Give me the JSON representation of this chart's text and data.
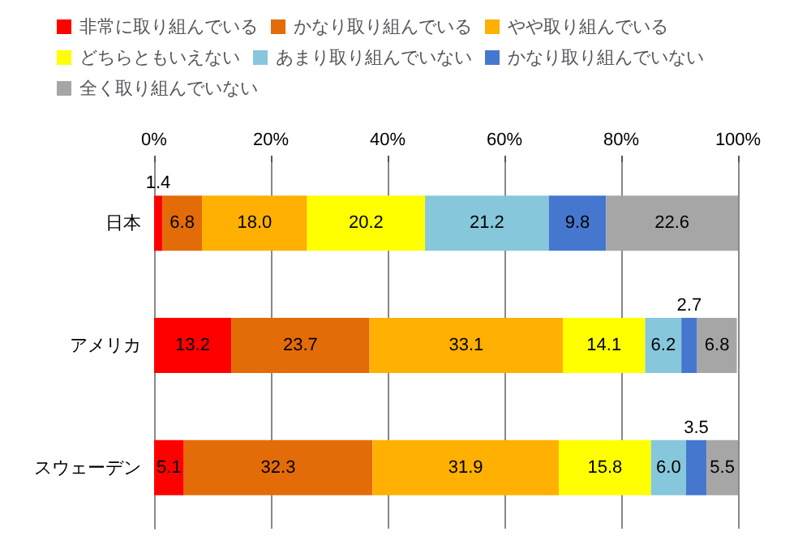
{
  "chart_data": {
    "type": "bar",
    "orientation": "horizontal",
    "stacked": true,
    "categories": [
      "日本",
      "アメリカ",
      "スウェーデン"
    ],
    "series": [
      {
        "name": "非常に取り組んでいる",
        "color": "#ff0000",
        "values": [
          1.4,
          13.2,
          5.1
        ],
        "value_labels": [
          "1.4",
          "13.2",
          "5.1"
        ]
      },
      {
        "name": "かなり取り組んでいる",
        "color": "#e36c09",
        "values": [
          6.8,
          23.7,
          32.3
        ],
        "value_labels": [
          "6.8",
          "23.7",
          "32.3"
        ]
      },
      {
        "name": "やや取り組んでいる",
        "color": "#ffb000",
        "values": [
          18,
          33.1,
          31.9
        ],
        "value_labels": [
          "18.0",
          "33.1",
          "31.9"
        ]
      },
      {
        "name": "どちらともいえない",
        "color": "#ffff00",
        "values": [
          20.2,
          14.1,
          15.8
        ],
        "value_labels": [
          "20.2",
          "14.1",
          "15.8"
        ]
      },
      {
        "name": "あまり取り組んでいない",
        "color": "#86c7db",
        "values": [
          21.2,
          6.2,
          6
        ],
        "value_labels": [
          "21.2",
          "6.2",
          "6.0"
        ]
      },
      {
        "name": "かなり取り組んでいない",
        "color": "#4677cf",
        "values": [
          9.8,
          2.7,
          3.5
        ],
        "value_labels": [
          "9.8",
          "2.7",
          "3.5"
        ]
      },
      {
        "name": "全く取り組んでいない",
        "color": "#a6a6a6",
        "values": [
          22.6,
          6.8,
          5.5
        ],
        "value_labels": [
          "22.6",
          "6.8",
          "5.5"
        ]
      }
    ],
    "xlim": [
      0,
      100
    ],
    "xticks": [
      {
        "value": 0,
        "label": "0%"
      },
      {
        "value": 20,
        "label": "20%"
      },
      {
        "value": 40,
        "label": "40%"
      },
      {
        "value": 60,
        "label": "60%"
      },
      {
        "value": 80,
        "label": "80%"
      },
      {
        "value": 100,
        "label": "100%"
      }
    ],
    "grid": "x",
    "legend": "top"
  }
}
